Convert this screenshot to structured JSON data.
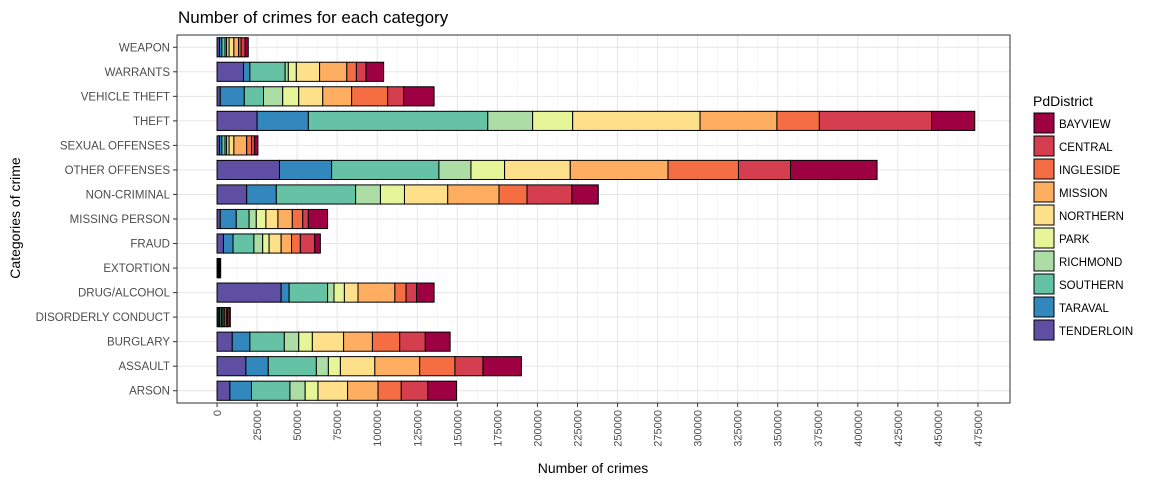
{
  "chart_data": {
    "type": "bar",
    "orientation": "horizontal",
    "stacked": true,
    "title": "Number of crimes for each category",
    "xlabel": "Number of crimes",
    "ylabel": "Categories of crime",
    "xlim": [
      -25000,
      495000
    ],
    "grid": true,
    "legend_position": "right",
    "legend_title": "PdDistrict",
    "categories": [
      "WEAPON",
      "WARRANTS",
      "VEHICLE THEFT",
      "THEFT",
      "SEXUAL OFFENSES",
      "OTHER OFFENSES",
      "NON-CRIMINAL",
      "MISSING PERSON",
      "FRAUD",
      "EXTORTION",
      "DRUG/ALCOHOL",
      "DISORDERLY CONDUCT",
      "BURGLARY",
      "ASSAULT",
      "ARSON"
    ],
    "x_ticks": [
      0,
      25000,
      50000,
      75000,
      100000,
      125000,
      150000,
      175000,
      200000,
      225000,
      250000,
      275000,
      300000,
      325000,
      350000,
      375000,
      400000,
      425000,
      450000,
      475000
    ],
    "x_tick_labels": [
      "0",
      "25000",
      "50000",
      "75000",
      "100000",
      "125000",
      "150000",
      "175000",
      "200000",
      "225000",
      "250000",
      "275000",
      "300000",
      "325000",
      "350000",
      "375000",
      "400000",
      "425000",
      "450000",
      "475000"
    ],
    "stack_order": [
      "TENDERLOIN",
      "TARAVAL",
      "SOUTHERN",
      "RICHMOND",
      "PARK",
      "NORTHERN",
      "MISSION",
      "INGLESIDE",
      "CENTRAL",
      "BAYVIEW"
    ],
    "legend": [
      {
        "label": "BAYVIEW",
        "color": "#9e0142"
      },
      {
        "label": "CENTRAL",
        "color": "#d53e4f"
      },
      {
        "label": "INGLESIDE",
        "color": "#f46d43"
      },
      {
        "label": "MISSION",
        "color": "#fdae61"
      },
      {
        "label": "NORTHERN",
        "color": "#fee08b"
      },
      {
        "label": "PARK",
        "color": "#e6f598"
      },
      {
        "label": "RICHMOND",
        "color": "#abdda4"
      },
      {
        "label": "SOUTHERN",
        "color": "#66c2a5"
      },
      {
        "label": "TARAVAL",
        "color": "#3288bd"
      },
      {
        "label": "TENDERLOIN",
        "color": "#5e4fa2"
      }
    ],
    "series": [
      {
        "name": "TENDERLOIN",
        "color": "#5e4fa2",
        "values": [
          1500,
          16500,
          2000,
          25000,
          1500,
          39000,
          18500,
          2000,
          4000,
          300,
          40000,
          800,
          9500,
          18000,
          8000
        ]
      },
      {
        "name": "TARAVAL",
        "color": "#3288bd",
        "values": [
          1500,
          4000,
          15000,
          32000,
          1500,
          32500,
          18500,
          10000,
          6000,
          200,
          5000,
          800,
          11000,
          14000,
          13500
        ]
      },
      {
        "name": "SOUTHERN",
        "color": "#66c2a5",
        "values": [
          2000,
          22000,
          12000,
          112000,
          2000,
          67000,
          49500,
          8000,
          13000,
          300,
          24000,
          1000,
          21500,
          30000,
          24000
        ]
      },
      {
        "name": "RICHMOND",
        "color": "#abdda4",
        "values": [
          1000,
          2000,
          12000,
          28000,
          1000,
          20000,
          15500,
          4500,
          5500,
          200,
          4000,
          500,
          9000,
          7500,
          9500
        ]
      },
      {
        "name": "PARK",
        "color": "#e6f598",
        "values": [
          1500,
          5000,
          10000,
          25000,
          1500,
          21000,
          15000,
          6000,
          4000,
          150,
          6500,
          800,
          8500,
          7500,
          8000
        ]
      },
      {
        "name": "NORTHERN",
        "color": "#fee08b",
        "values": [
          3000,
          14500,
          15000,
          79500,
          3000,
          41000,
          27000,
          7500,
          7500,
          200,
          8500,
          900,
          19500,
          21500,
          18500
        ]
      },
      {
        "name": "MISSION",
        "color": "#fdae61",
        "values": [
          3000,
          17000,
          18000,
          48000,
          8000,
          61000,
          32000,
          9000,
          6500,
          300,
          23000,
          1000,
          18000,
          28000,
          19000
        ]
      },
      {
        "name": "INGLESIDE",
        "color": "#f46d43",
        "values": [
          1500,
          6000,
          22500,
          26500,
          3000,
          44000,
          17500,
          6500,
          5500,
          200,
          7000,
          700,
          17000,
          22000,
          14500
        ]
      },
      {
        "name": "CENTRAL",
        "color": "#d53e4f",
        "values": [
          2500,
          6000,
          10000,
          70000,
          2000,
          32500,
          28000,
          3500,
          9000,
          100,
          6500,
          1000,
          16000,
          17500,
          16500
        ]
      },
      {
        "name": "BAYVIEW",
        "color": "#9e0142",
        "values": [
          2000,
          11000,
          19000,
          27000,
          2000,
          54000,
          16500,
          12000,
          3500,
          300,
          11000,
          800,
          15500,
          24000,
          18000
        ]
      }
    ]
  }
}
